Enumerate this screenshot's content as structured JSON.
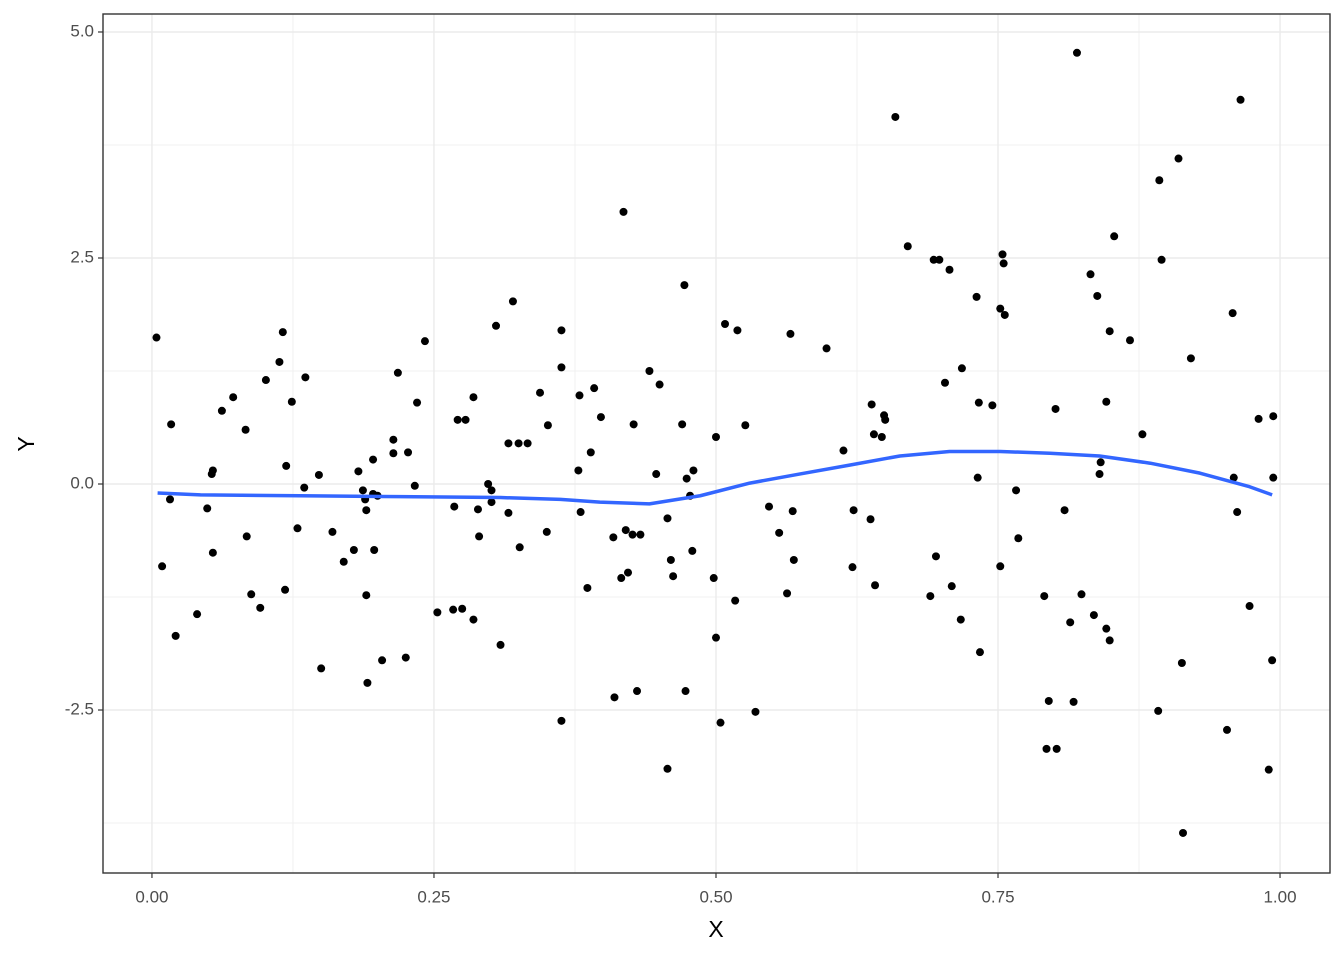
{
  "chart_data": {
    "type": "scatter",
    "x_label": "X",
    "y_label": "Y",
    "xlim": [
      -0.0434,
      1.0443
    ],
    "ylim": [
      -4.303,
      5.199
    ],
    "xticks": [
      {
        "value": 0,
        "label": "0.00"
      },
      0.25,
      {
        "value": 0.5,
        "label": "0.50"
      },
      0.75,
      {
        "value": 1,
        "label": "1.00"
      }
    ],
    "yticks": [
      -2.5,
      {
        "value": 0,
        "label": "0.0"
      },
      2.5,
      {
        "value": 5,
        "label": "5.0"
      }
    ],
    "grid": true,
    "series": [
      {
        "type": "scatter",
        "color": "#000000",
        "x": [
          0.004,
          0.009,
          0.017,
          0.016,
          0.021,
          0.04,
          0.049,
          0.053,
          0.054,
          0.054,
          0.062,
          0.072,
          0.083,
          0.084,
          0.088,
          0.096,
          0.101,
          0.113,
          0.116,
          0.119,
          0.118,
          0.124,
          0.129,
          0.135,
          0.136,
          0.15,
          0.148,
          0.16,
          0.17,
          0.179,
          0.183,
          0.187,
          0.189,
          0.19,
          0.19,
          0.191,
          0.196,
          0.196,
          0.197,
          0.2,
          0.204,
          0.214,
          0.214,
          0.218,
          0.225,
          0.227,
          0.233,
          0.235,
          0.242,
          0.253,
          0.267,
          0.268,
          0.271,
          0.275,
          0.278,
          0.285,
          0.285,
          0.289,
          0.29,
          0.298,
          0.301,
          0.301,
          0.305,
          0.309,
          0.316,
          0.316,
          0.32,
          0.325,
          0.326,
          0.333,
          0.344,
          0.35,
          0.351,
          0.363,
          0.363,
          0.363,
          0.378,
          0.379,
          0.38,
          0.386,
          0.389,
          0.392,
          0.398,
          0.409,
          0.41,
          0.416,
          0.418,
          0.42,
          0.422,
          0.426,
          0.427,
          0.43,
          0.433,
          0.441,
          0.447,
          0.45,
          0.457,
          0.457,
          0.46,
          0.462,
          0.47,
          0.472,
          0.473,
          0.474,
          0.477,
          0.479,
          0.48,
          0.498,
          0.5,
          0.5,
          0.504,
          0.508,
          0.517,
          0.519,
          0.526,
          0.535,
          0.547,
          0.556,
          0.563,
          0.566,
          0.568,
          0.569,
          0.598,
          0.613,
          0.621,
          0.622,
          0.637,
          0.638,
          0.64,
          0.641,
          0.647,
          0.649,
          0.65,
          0.659,
          0.67,
          0.69,
          0.693,
          0.695,
          0.698,
          0.703,
          0.707,
          0.709,
          0.718,
          0.717,
          0.731,
          0.733,
          0.732,
          0.734,
          0.745,
          0.752,
          0.752,
          0.754,
          0.755,
          0.756,
          0.766,
          0.768,
          0.791,
          0.793,
          0.795,
          0.802,
          0.801,
          0.809,
          0.814,
          0.817,
          0.82,
          0.824,
          0.832,
          0.835,
          0.838,
          0.84,
          0.841,
          0.846,
          0.846,
          0.849,
          0.849,
          0.853,
          0.867,
          0.878,
          0.892,
          0.893,
          0.895,
          0.91,
          0.914,
          0.913,
          0.921,
          0.953,
          0.958,
          0.959,
          0.962,
          0.965,
          0.973,
          0.981,
          0.99,
          0.993,
          0.994,
          0.994
        ],
        "values": [
          1.62,
          -0.91,
          0.66,
          -0.17,
          -1.68,
          -1.44,
          -0.27,
          0.11,
          0.15,
          -0.76,
          0.81,
          0.96,
          0.6,
          -0.58,
          -1.22,
          -1.37,
          1.15,
          1.35,
          1.68,
          0.2,
          -1.17,
          0.91,
          -0.49,
          -0.04,
          1.18,
          -2.04,
          0.1,
          -0.53,
          -0.86,
          -0.73,
          0.14,
          -0.07,
          -0.17,
          -0.29,
          -1.23,
          -2.2,
          -0.11,
          0.27,
          -0.73,
          -0.13,
          -1.95,
          0.49,
          0.34,
          1.23,
          -1.92,
          0.35,
          -0.02,
          0.9,
          1.58,
          -1.42,
          -1.39,
          -0.25,
          0.71,
          -1.38,
          0.71,
          -1.5,
          0.96,
          -0.28,
          -0.58,
          0.0,
          -0.07,
          -0.2,
          1.75,
          -1.78,
          -0.32,
          0.45,
          2.02,
          0.45,
          -0.7,
          0.45,
          1.01,
          -0.53,
          0.65,
          -2.62,
          1.7,
          1.29,
          0.15,
          0.98,
          -0.31,
          -1.15,
          0.35,
          1.06,
          0.74,
          -0.59,
          -2.36,
          -1.04,
          3.01,
          -0.51,
          -0.98,
          -0.56,
          0.66,
          -2.29,
          -0.56,
          1.25,
          0.11,
          1.1,
          -0.38,
          -3.15,
          -0.84,
          -1.02,
          0.66,
          2.2,
          -2.29,
          0.06,
          -0.13,
          -0.74,
          0.15,
          -1.04,
          -1.7,
          0.52,
          -2.64,
          1.77,
          -1.29,
          1.7,
          0.65,
          -2.52,
          -0.25,
          -0.54,
          -1.21,
          1.66,
          -0.3,
          -0.84,
          1.5,
          0.37,
          -0.92,
          -0.29,
          -0.39,
          0.88,
          0.55,
          -1.12,
          0.52,
          0.76,
          0.71,
          4.06,
          2.63,
          -1.24,
          2.48,
          -0.8,
          2.48,
          1.12,
          2.37,
          -1.13,
          1.28,
          -1.5,
          2.07,
          0.9,
          0.07,
          -1.86,
          0.87,
          -0.91,
          1.94,
          2.54,
          2.44,
          1.87,
          -0.07,
          -0.6,
          -1.24,
          -2.93,
          -2.4,
          -2.93,
          0.83,
          -0.29,
          -1.53,
          -2.41,
          4.77,
          -1.22,
          2.32,
          -1.45,
          2.08,
          0.11,
          0.24,
          0.91,
          -1.6,
          -1.73,
          1.69,
          2.74,
          1.59,
          0.55,
          -2.51,
          3.36,
          2.48,
          3.6,
          -3.86,
          -1.98,
          1.39,
          -2.72,
          1.89,
          0.07,
          -0.31,
          4.25,
          -1.35,
          0.72,
          -3.16,
          -1.95,
          0.75,
          0.07
        ]
      },
      {
        "type": "line",
        "color": "#3366ff",
        "x": [
          0.005,
          0.043,
          0.131,
          0.22,
          0.309,
          0.362,
          0.397,
          0.441,
          0.486,
          0.53,
          0.574,
          0.619,
          0.663,
          0.707,
          0.752,
          0.796,
          0.84,
          0.885,
          0.929,
          0.973,
          0.993
        ],
        "values": [
          -0.1,
          -0.12,
          -0.13,
          -0.14,
          -0.15,
          -0.17,
          -0.2,
          -0.22,
          -0.13,
          0.01,
          0.11,
          0.21,
          0.31,
          0.36,
          0.36,
          0.34,
          0.31,
          0.23,
          0.12,
          -0.03,
          -0.12
        ]
      }
    ]
  }
}
